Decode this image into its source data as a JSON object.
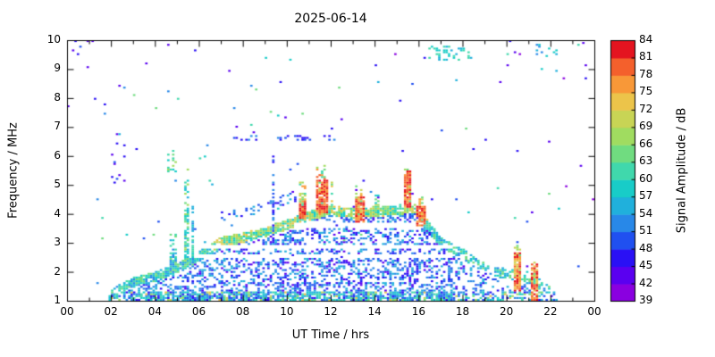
{
  "figure": {
    "title": "2025-06-14",
    "xlabel": "UT Time / hrs",
    "ylabel": "Frequency / MHz",
    "colorbar_label": "Signal Amplitude / dB"
  },
  "chart_data": {
    "type": "heatmap",
    "title": "2025-06-14",
    "xlabel": "UT Time / hrs",
    "ylabel": "Frequency / MHz",
    "xlim": [
      0,
      24
    ],
    "ylim": [
      1,
      10
    ],
    "grid": false,
    "x_ticks": {
      "values": [
        0,
        2,
        4,
        6,
        8,
        10,
        12,
        14,
        16,
        18,
        20,
        22,
        24
      ],
      "labels": [
        "00",
        "02",
        "04",
        "06",
        "08",
        "10",
        "12",
        "14",
        "16",
        "18",
        "20",
        "22",
        "00"
      ]
    },
    "y_ticks": [
      1,
      2,
      3,
      4,
      5,
      6,
      7,
      8,
      9,
      10
    ],
    "colorbar": {
      "label": "Signal Amplitude / dB",
      "min": 39,
      "max": 84,
      "ticks": [
        39,
        42,
        45,
        48,
        51,
        54,
        57,
        60,
        63,
        66,
        69,
        72,
        75,
        78,
        81,
        84
      ],
      "palette": [
        "#8a00e0",
        "#5a00f0",
        "#2a10f5",
        "#2050f0",
        "#2888e8",
        "#20b0dc",
        "#18ccc8",
        "#40d8ac",
        "#70dc80",
        "#a0dc60",
        "#c8d455",
        "#ecc44a",
        "#f89838",
        "#f4602c",
        "#e41420"
      ]
    },
    "envelope_foF2": [
      [
        1.8,
        1.0
      ],
      [
        2.0,
        1.4
      ],
      [
        2.5,
        1.6
      ],
      [
        3,
        1.8
      ],
      [
        4,
        2.0
      ],
      [
        5,
        2.3
      ],
      [
        6,
        2.7
      ],
      [
        7,
        3.2
      ],
      [
        8,
        3.35
      ],
      [
        9,
        3.55
      ],
      [
        10,
        3.8
      ],
      [
        11,
        4.1
      ],
      [
        12,
        4.3
      ],
      [
        13,
        4.2
      ],
      [
        14,
        4.25
      ],
      [
        15,
        4.3
      ],
      [
        15.8,
        4.4
      ],
      [
        16.2,
        4.0
      ],
      [
        17,
        3.2
      ],
      [
        18,
        2.8
      ],
      [
        19,
        2.3
      ],
      [
        20,
        2.1
      ],
      [
        21,
        2.0
      ],
      [
        21.8,
        1.6
      ],
      [
        22.3,
        1.2
      ]
    ],
    "spikes": [
      {
        "t": 4.85,
        "w": 0.3,
        "top": 3.3,
        "amp_min": 51,
        "amp_max": 66
      },
      {
        "t": 5.45,
        "w": 0.28,
        "top": 5.6,
        "amp_min": 54,
        "amp_max": 69
      },
      {
        "t": 5.75,
        "w": 0.15,
        "top": 4.5,
        "amp_min": 51,
        "amp_max": 63
      },
      {
        "t": 9.4,
        "w": 0.1,
        "top": 6.0,
        "amp_min": 45,
        "amp_max": 54
      },
      {
        "t": 10.7,
        "w": 0.3,
        "top": 5.2,
        "amp_min": 60,
        "amp_max": 78
      },
      {
        "t": 11.6,
        "w": 0.45,
        "top": 5.7,
        "amp_min": 60,
        "amp_max": 81
      },
      {
        "t": 12.05,
        "w": 0.2,
        "top": 5.3,
        "amp_min": 57,
        "amp_max": 75
      },
      {
        "t": 13.3,
        "w": 0.3,
        "top": 5.0,
        "amp_min": 60,
        "amp_max": 78
      },
      {
        "t": 14.1,
        "w": 0.2,
        "top": 4.8,
        "amp_min": 57,
        "amp_max": 72
      },
      {
        "t": 15.5,
        "w": 0.35,
        "top": 5.6,
        "amp_min": 63,
        "amp_max": 81
      },
      {
        "t": 16.1,
        "w": 0.2,
        "top": 4.6,
        "amp_min": 60,
        "amp_max": 78
      },
      {
        "t": 20.5,
        "w": 0.3,
        "top": 3.0,
        "amp_min": 60,
        "amp_max": 72
      },
      {
        "t": 21.3,
        "w": 0.25,
        "top": 2.5,
        "amp_min": 60,
        "amp_max": 72
      }
    ],
    "hot_spots": [
      {
        "t0": 10.55,
        "t1": 10.9,
        "f0": 3.8,
        "f1": 4.5,
        "amp_min": 75,
        "amp_max": 84
      },
      {
        "t0": 11.3,
        "t1": 11.9,
        "f0": 4.0,
        "f1": 5.2,
        "amp_min": 75,
        "amp_max": 84
      },
      {
        "t0": 13.1,
        "t1": 13.5,
        "f0": 3.7,
        "f1": 4.6,
        "amp_min": 75,
        "amp_max": 84
      },
      {
        "t0": 15.3,
        "t1": 15.7,
        "f0": 4.2,
        "f1": 5.5,
        "amp_min": 75,
        "amp_max": 84
      },
      {
        "t0": 15.9,
        "t1": 16.3,
        "f0": 3.6,
        "f1": 4.3,
        "amp_min": 75,
        "amp_max": 84
      },
      {
        "t0": 20.35,
        "t1": 20.65,
        "f0": 1.3,
        "f1": 2.7,
        "amp_min": 72,
        "amp_max": 84
      },
      {
        "t0": 21.15,
        "t1": 21.45,
        "f0": 1.0,
        "f1": 2.3,
        "amp_min": 72,
        "amp_max": 84
      }
    ],
    "interference_gaps": [
      {
        "f0": 2.45,
        "f1": 2.58,
        "t0": 5.2,
        "t1": 17.6
      },
      {
        "f0": 2.78,
        "f1": 2.92,
        "t0": 5.2,
        "t1": 17.6
      },
      {
        "f0": 3.5,
        "f1": 3.72,
        "t0": 10.3,
        "t1": 16.2
      }
    ],
    "noise": {
      "density": 0.005
    },
    "clusters": [
      {
        "t0": 0.1,
        "t1": 1.3,
        "f0": 9.5,
        "f1": 10.0,
        "density": 0.1,
        "amp_min": 42,
        "amp_max": 51
      },
      {
        "t0": 16.4,
        "t1": 18.6,
        "f0": 9.3,
        "f1": 9.8,
        "density": 0.22,
        "amp_min": 54,
        "amp_max": 63
      },
      {
        "t0": 20.9,
        "t1": 22.4,
        "f0": 9.45,
        "f1": 9.85,
        "density": 0.1,
        "amp_min": 51,
        "amp_max": 60
      },
      {
        "t0": 7.6,
        "t1": 12.4,
        "f0": 6.55,
        "f1": 6.72,
        "density": 0.15,
        "amp_min": 45,
        "amp_max": 54
      },
      {
        "t0": 4.6,
        "t1": 5.0,
        "f0": 5.3,
        "f1": 6.2,
        "density": 0.1,
        "amp_min": 57,
        "amp_max": 69
      },
      {
        "t0": 6.3,
        "t1": 6.55,
        "f0": 5.1,
        "f1": 5.45,
        "density": 0.15,
        "amp_min": 60,
        "amp_max": 72
      },
      {
        "t0": 2.0,
        "t1": 2.7,
        "f0": 5.0,
        "f1": 7.0,
        "density": 0.05,
        "amp_min": 42,
        "amp_max": 51
      }
    ],
    "seed": 20250614
  }
}
